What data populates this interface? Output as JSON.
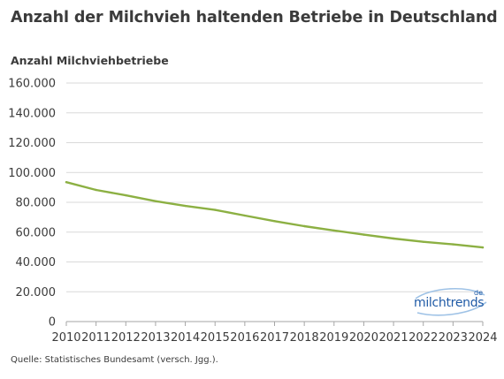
{
  "chart_data": {
    "type": "line",
    "title": "Anzahl der Milchvieh haltenden Betriebe in Deutschland",
    "ylabel": "Anzahl Milchviehbetriebe",
    "xlabel": "",
    "x": [
      "2010",
      "2011",
      "2012",
      "2013",
      "2014",
      "2015",
      "2016",
      "2017",
      "2018",
      "2019",
      "2020",
      "2021",
      "2022",
      "2023",
      "2024"
    ],
    "series": [
      {
        "values": [
          93500,
          88300,
          84700,
          80800,
          77600,
          74900,
          71100,
          67400,
          64000,
          61100,
          58300,
          55700,
          53500,
          51800,
          49700
        ]
      }
    ],
    "ylim": [
      0,
      160000
    ],
    "y_ticks": [
      "0",
      "20.000",
      "40.000",
      "60.000",
      "80.000",
      "100.000",
      "120.000",
      "140.000",
      "160.000"
    ],
    "y_tick_values": [
      0,
      20000,
      40000,
      60000,
      80000,
      100000,
      120000,
      140000,
      160000
    ],
    "grid": true,
    "line_color": "#8cb043",
    "grid_color": "#d9d9d9"
  },
  "footer": {
    "source": "Quelle: Statistisches Bundesamt (versch. Jgg.)."
  },
  "logo": {
    "text": "milchtrends",
    "suffix": "de",
    "color": "#1f5aa6"
  }
}
